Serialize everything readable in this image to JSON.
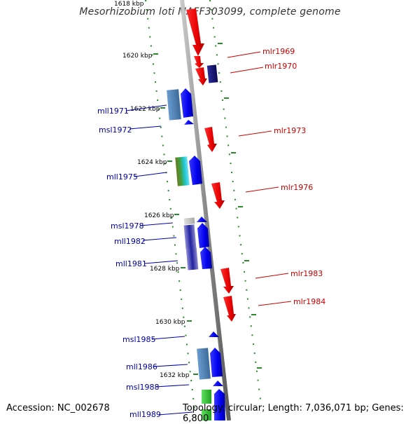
{
  "header": {
    "title": "Mesorhizobium loti MAFF303099, complete genome"
  },
  "footer": {
    "accession": "Accession: NC_002678",
    "summary": "Topology: circular; Length: 7,036,071 bp; Genes: 6,800"
  },
  "colors": {
    "reverse_label": "#0000aa",
    "forward_label": "#cc0000",
    "backbone": "#8c8c8c",
    "scale": "#2a8a2a"
  },
  "ruler": {
    "ticks": [
      "1618 kbp",
      "1620 kbp",
      "1622 kbp",
      "1624 kbp",
      "1626 kbp",
      "1628 kbp",
      "1630 kbp",
      "1632 kbp"
    ]
  },
  "genes": {
    "reverse": [
      "mll1971",
      "msl1972",
      "mll1975",
      "msl1978",
      "mll1982",
      "mll1981",
      "msl1985",
      "mll1986",
      "msl1988",
      "mll1989"
    ],
    "forward": [
      "mlr1969",
      "mlr1970",
      "mlr1973",
      "mlr1976",
      "mlr1983",
      "mlr1984"
    ]
  }
}
